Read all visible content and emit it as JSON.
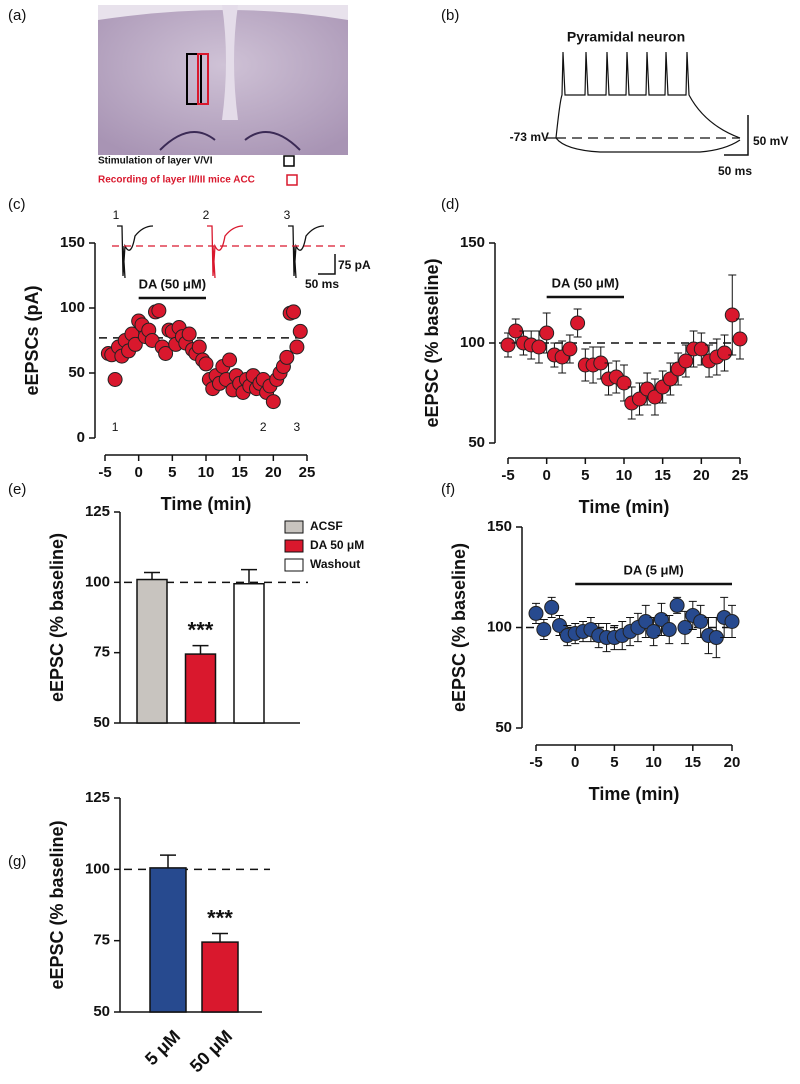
{
  "figure": {
    "panel_a": {
      "label": "(a)",
      "legend": [
        "Stimulation of layer V/VI",
        "Recording of layer II/III mice ACC"
      ]
    },
    "panel_b": {
      "label": "(b)",
      "title": "Pyramidal neuron",
      "potential": "-73 mV",
      "scale_labels": [
        "50 mV",
        "50 ms"
      ]
    }
  },
  "chart_data": [
    {
      "type": "scatter",
      "panel_label": "(c)",
      "ylabel": "eEPSCs (pA)",
      "xlabel": "Time (min)",
      "color": "#d9182d",
      "x": [
        -4.5,
        -4,
        -3.5,
        -3,
        -2.5,
        -2,
        -1.5,
        -1,
        -0.5,
        0,
        0.5,
        1,
        1.5,
        2,
        2.5,
        3,
        3.5,
        4,
        4.5,
        5,
        5.5,
        6,
        6.5,
        7,
        7.5,
        8,
        8.5,
        9,
        9.5,
        10,
        10.5,
        11,
        11.5,
        12,
        12.5,
        13,
        13.5,
        14,
        14.5,
        15,
        15.5,
        16,
        16.5,
        17,
        17.5,
        18,
        18.5,
        19,
        19.5,
        20,
        20.5,
        21,
        21.5,
        22,
        22.5,
        23,
        23.5,
        24
      ],
      "values": [
        65,
        64,
        45,
        70,
        63,
        75,
        67,
        80,
        72,
        90,
        87,
        78,
        83,
        75,
        97,
        98,
        70,
        65,
        83,
        82,
        72,
        85,
        78,
        73,
        80,
        68,
        65,
        70,
        60,
        57,
        45,
        38,
        48,
        42,
        55,
        45,
        60,
        37,
        48,
        42,
        35,
        45,
        40,
        48,
        38,
        42,
        45,
        35,
        40,
        28,
        45,
        50,
        55,
        62,
        96,
        97,
        70,
        82
      ],
      "xlim": [
        -5,
        25
      ],
      "ylim": [
        0,
        150
      ],
      "xticks": [
        -5,
        0,
        5,
        10,
        15,
        20,
        25
      ],
      "yticks": [
        0,
        50,
        100,
        150
      ],
      "reference_line": 77,
      "annotation": {
        "text": "DA (50 μM)",
        "x": [
          0,
          10
        ]
      },
      "markers": [
        {
          "text": "1",
          "x": -3.5
        },
        {
          "text": "2",
          "x": 18.5
        },
        {
          "text": "3",
          "x": 23.5
        }
      ],
      "inset": {
        "trace_labels": [
          "1",
          "2",
          "3"
        ],
        "scale_labels": [
          "75 pA",
          "50 ms"
        ]
      }
    },
    {
      "type": "scatter",
      "panel_label": "(d)",
      "ylabel": "eEPSC (% baseline)",
      "xlabel": "Time (min)",
      "color": "#d9182d",
      "x": [
        -5,
        -4,
        -3,
        -2,
        -1,
        0,
        1,
        2,
        3,
        4,
        5,
        6,
        7,
        8,
        9,
        10,
        11,
        12,
        13,
        14,
        15,
        16,
        17,
        18,
        19,
        20,
        21,
        22,
        23,
        24,
        25
      ],
      "values": [
        99,
        106,
        100,
        99,
        98,
        105,
        94,
        93,
        97,
        110,
        89,
        89,
        90,
        82,
        83,
        80,
        70,
        72,
        77,
        73,
        78,
        82,
        87,
        91,
        97,
        97,
        91,
        93,
        95,
        114,
        102
      ],
      "errors": [
        6,
        6,
        6,
        7,
        8,
        10,
        6,
        8,
        7,
        7,
        8,
        9,
        8,
        8,
        8,
        9,
        8,
        8,
        8,
        9,
        8,
        8,
        8,
        8,
        9,
        8,
        8,
        9,
        9,
        20,
        10
      ],
      "xlim": [
        -5,
        25
      ],
      "ylim": [
        50,
        150
      ],
      "xticks": [
        -5,
        0,
        5,
        10,
        15,
        20,
        25
      ],
      "yticks": [
        50,
        100,
        150
      ],
      "reference_line": 100,
      "annotation": {
        "text": "DA (50 μM)",
        "x": [
          0,
          10
        ]
      }
    },
    {
      "type": "bar",
      "panel_label": "(e)",
      "ylabel": "eEPSC  (% baseline)",
      "categories": [
        "ACSF",
        "DA 50 μM",
        "Washout"
      ],
      "values": [
        101,
        74.5,
        99.5
      ],
      "errors": [
        2.5,
        3,
        5
      ],
      "colors": [
        "#c8c4bf",
        "#d9182d",
        "#ffffff"
      ],
      "significance": [
        null,
        "***",
        null
      ],
      "ylim": [
        50,
        125
      ],
      "yticks": [
        50,
        75,
        100,
        125
      ],
      "reference_line": 100,
      "legend": true
    },
    {
      "type": "scatter",
      "panel_label": "(f)",
      "ylabel": "eEPSC (% baseline)",
      "xlabel": "Time (min)",
      "color": "#274a8f",
      "x": [
        -5,
        -4,
        -3,
        -2,
        -1,
        0,
        1,
        2,
        3,
        4,
        5,
        6,
        7,
        8,
        9,
        10,
        11,
        12,
        13,
        14,
        15,
        16,
        17,
        18,
        19,
        20
      ],
      "values": [
        107,
        99,
        110,
        101,
        96,
        97,
        98,
        99,
        96,
        95,
        95,
        96,
        98,
        100,
        103,
        98,
        104,
        99,
        111,
        100,
        106,
        103,
        96,
        95,
        105,
        103
      ],
      "errors": [
        5,
        5,
        5,
        5,
        5,
        5,
        5,
        6,
        6,
        7,
        6,
        7,
        7,
        7,
        8,
        7,
        8,
        7,
        4,
        8,
        7,
        8,
        9,
        10,
        10,
        8
      ],
      "xlim": [
        -5,
        20
      ],
      "ylim": [
        50,
        150
      ],
      "xticks": [
        -5,
        0,
        5,
        10,
        15,
        20
      ],
      "yticks": [
        50,
        100,
        150
      ],
      "reference_line": 100,
      "annotation": {
        "text": "DA (5 μM)",
        "x": [
          0,
          20
        ]
      }
    },
    {
      "type": "bar",
      "panel_label": "(g)",
      "ylabel": "eEPSC (% baseline)",
      "categories": [
        "5 μM",
        "50 μM"
      ],
      "values": [
        100.5,
        74.5
      ],
      "errors": [
        4.5,
        3
      ],
      "colors": [
        "#274a8f",
        "#d9182d"
      ],
      "significance": [
        null,
        "***"
      ],
      "ylim": [
        50,
        125
      ],
      "yticks": [
        50,
        75,
        100,
        125
      ],
      "reference_line": 100,
      "legend": false
    }
  ]
}
